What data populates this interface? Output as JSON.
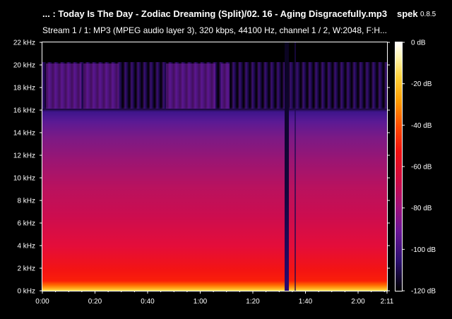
{
  "header": {
    "title": "... : Today Is The Day - Zodiac Dreaming (Split)/02. 16 - Aging Disgracefully.mp3",
    "app_name": "spek",
    "app_version": "0.8.5",
    "stream_info": "Stream 1 / 1: MP3 (MPEG audio layer 3), 320 kbps, 44100 Hz, channel 1 / 2, W:2048, F:H..."
  },
  "chart_data": {
    "type": "heatmap",
    "title": "",
    "xlabel": "",
    "ylabel": "",
    "x_tick_labels": [
      "0:00",
      "0:20",
      "0:40",
      "1:00",
      "1:20",
      "1:40",
      "2:00",
      "2:11"
    ],
    "x_tick_seconds": [
      0,
      20,
      40,
      60,
      80,
      100,
      120,
      131
    ],
    "x_range_seconds": [
      0,
      131
    ],
    "y_tick_labels": [
      "0 kHz",
      "2 kHz",
      "4 kHz",
      "6 kHz",
      "8 kHz",
      "10 kHz",
      "12 kHz",
      "14 kHz",
      "16 kHz",
      "18 kHz",
      "20 kHz",
      "22 kHz"
    ],
    "y_tick_khz": [
      0,
      2,
      4,
      6,
      8,
      10,
      12,
      14,
      16,
      18,
      20,
      22
    ],
    "y_range_khz": [
      0,
      22
    ],
    "colorbar_labels": [
      "0 dB",
      "-20 dB",
      "-40 dB",
      "-60 dB",
      "-80 dB",
      "-100 dB",
      "-120 dB"
    ],
    "colorbar_db": [
      0,
      -20,
      -40,
      -60,
      -80,
      -100,
      -120
    ],
    "colorbar_range_db": [
      -120,
      0
    ],
    "colors": {
      "background": "#000000",
      "text": "#ffffff"
    }
  }
}
